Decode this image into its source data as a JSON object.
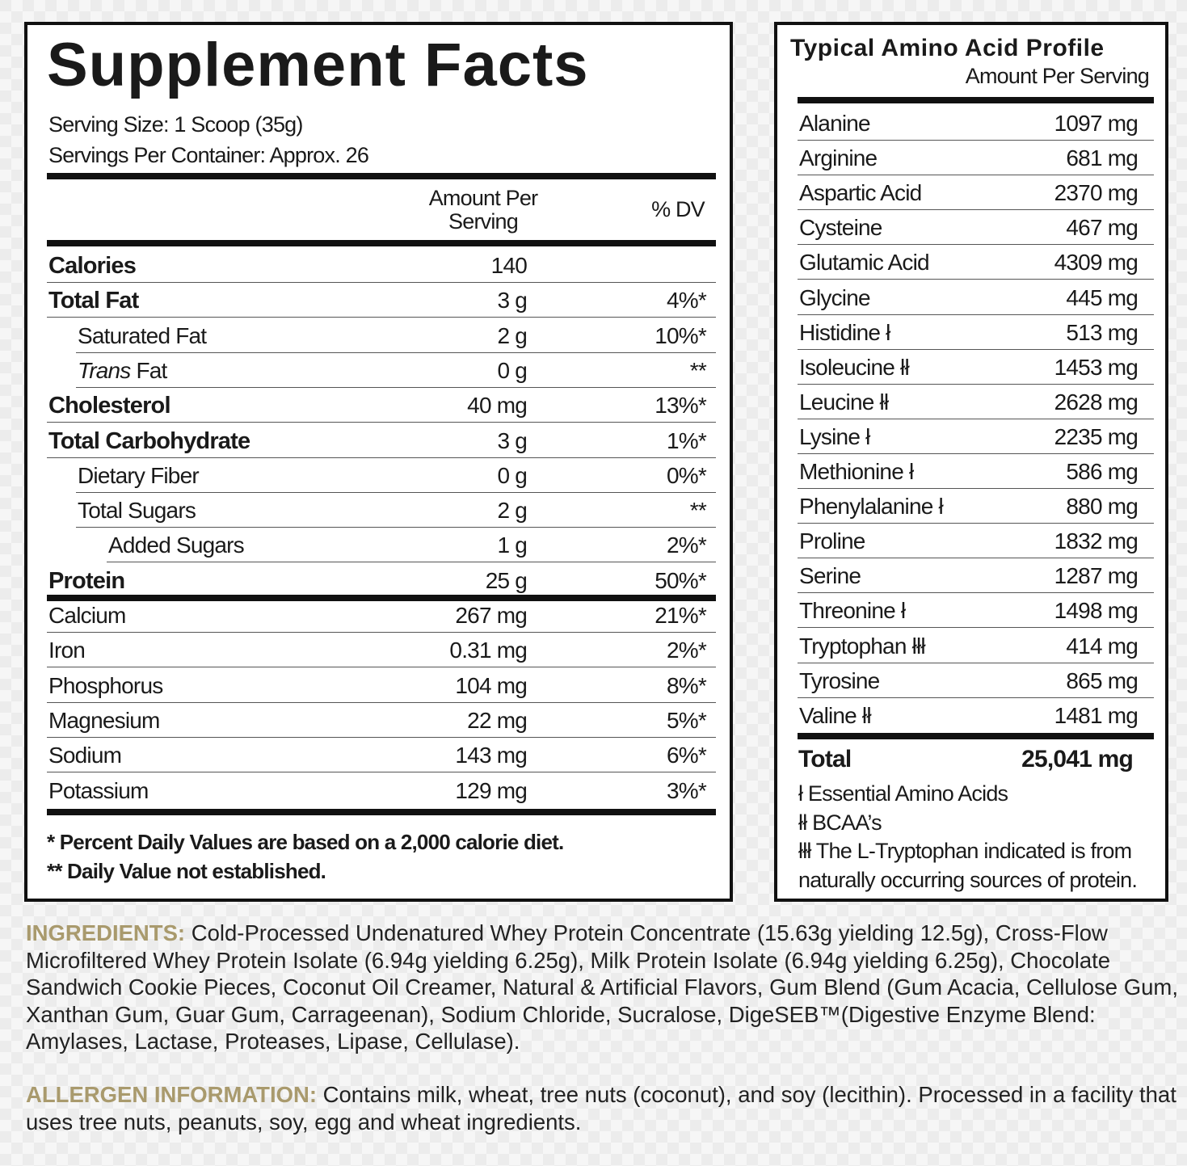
{
  "supplement_facts": {
    "title": "Supplement Facts",
    "serving_size": "Serving Size: 1 Scoop (35g)",
    "servings_per_container": "Servings Per Container: Approx. 26",
    "col_amount": "Amount Per Serving",
    "col_dv": "% DV",
    "rows": [
      {
        "name": "Calories",
        "amount": "140",
        "dv": "",
        "bold": true,
        "indent": 0
      },
      {
        "name": "Total Fat",
        "amount": "3 g",
        "dv": "4%*",
        "bold": true,
        "indent": 0
      },
      {
        "name": "Saturated Fat",
        "amount": "2 g",
        "dv": "10%*",
        "bold": false,
        "indent": 1
      },
      {
        "italic": "Trans",
        "name": " Fat",
        "amount": "0 g",
        "dv": "**",
        "bold": false,
        "indent": 1
      },
      {
        "name": "Cholesterol",
        "amount": "40 mg",
        "dv": "13%*",
        "bold": true,
        "indent": 0
      },
      {
        "name": "Total Carbohydrate",
        "amount": "3 g",
        "dv": "1%*",
        "bold": true,
        "indent": 0
      },
      {
        "name": "Dietary Fiber",
        "amount": "0 g",
        "dv": "0%*",
        "bold": false,
        "indent": 1
      },
      {
        "name": "Total Sugars",
        "amount": "2 g",
        "dv": "**",
        "bold": false,
        "indent": 1
      },
      {
        "name": "Added Sugars",
        "amount": "1 g",
        "dv": "2%*",
        "bold": false,
        "indent": 2
      },
      {
        "name": "Protein",
        "amount": "25 g",
        "dv": "50%*",
        "bold": true,
        "indent": 0
      },
      {
        "name": "Calcium",
        "amount": "267 mg",
        "dv": "21%*",
        "bold": false,
        "indent": 0
      },
      {
        "name": "Iron",
        "amount": "0.31 mg",
        "dv": "2%*",
        "bold": false,
        "indent": 0
      },
      {
        "name": "Phosphorus",
        "amount": "104 mg",
        "dv": "8%*",
        "bold": false,
        "indent": 0
      },
      {
        "name": "Magnesium",
        "amount": "22 mg",
        "dv": "5%*",
        "bold": false,
        "indent": 0
      },
      {
        "name": "Sodium",
        "amount": "143 mg",
        "dv": "6%*",
        "bold": false,
        "indent": 0
      },
      {
        "name": "Potassium",
        "amount": "129 mg",
        "dv": "3%*",
        "bold": false,
        "indent": 0
      }
    ],
    "footnote_1": "* Percent Daily Values are based on a 2,000 calorie diet.",
    "footnote_2": "** Daily Value not established."
  },
  "amino_profile": {
    "title": "Typical Amino Acid Profile",
    "subtitle": "Amount Per Serving",
    "rows": [
      {
        "name": "Alanine",
        "amount": "1097 mg"
      },
      {
        "name": "Arginine",
        "amount": "681 mg"
      },
      {
        "name": "Aspartic Acid",
        "amount": "2370 mg"
      },
      {
        "name": "Cysteine",
        "amount": "467 mg"
      },
      {
        "name": "Glutamic Acid",
        "amount": "4309 mg"
      },
      {
        "name": "Glycine",
        "amount": "445 mg"
      },
      {
        "name": "Histidine ł",
        "amount": "513 mg"
      },
      {
        "name": "Isoleucine łł",
        "amount": "1453 mg"
      },
      {
        "name": "Leucine łł",
        "amount": "2628 mg"
      },
      {
        "name": "Lysine ł",
        "amount": "2235 mg"
      },
      {
        "name": "Methionine ł",
        "amount": "586 mg"
      },
      {
        "name": "Phenylalanine ł",
        "amount": "880 mg"
      },
      {
        "name": "Proline",
        "amount": "1832 mg"
      },
      {
        "name": "Serine",
        "amount": "1287 mg"
      },
      {
        "name": "Threonine ł",
        "amount": "1498 mg"
      },
      {
        "name": "Tryptophan łłł",
        "amount": "414 mg"
      },
      {
        "name": "Tyrosine",
        "amount": "865 mg"
      },
      {
        "name": "Valine łł",
        "amount": "1481 mg"
      }
    ],
    "total_label": "Total",
    "total_amount": "25,041 mg",
    "legend": [
      "ł Essential Amino Acids",
      "łł BCAA’s",
      "łłł The L-Tryptophan indicated is from naturally occurring sources of protein."
    ]
  },
  "ingredients": {
    "label": "INGREDIENTS:",
    "text": " Cold-Processed Undenatured Whey Protein Concentrate (15.63g yielding 12.5g), Cross-Flow Microfiltered Whey Protein Isolate (6.94g yielding 6.25g), Milk Protein Isolate (6.94g yielding 6.25g), Chocolate Sandwich Cookie Pieces, Coconut Oil Creamer, Natural & Artificial Flavors, Gum Blend (Gum Acacia, Cellulose Gum, Xanthan Gum, Guar Gum, Carrageenan), Sodium Chloride, Sucralose, DigeSEB™(Digestive Enzyme Blend: Amylases, Lactase, Proteases, Lipase, Cellulase)."
  },
  "allergen": {
    "label": "ALLERGEN INFORMATION:",
    "text": " Contains milk, wheat, tree nuts (coconut), and soy (lecithin). Processed in a facility that uses tree nuts, peanuts, soy, egg and wheat ingredients."
  },
  "colors": {
    "label_gold": "#a99a6d",
    "border": "#111111"
  }
}
